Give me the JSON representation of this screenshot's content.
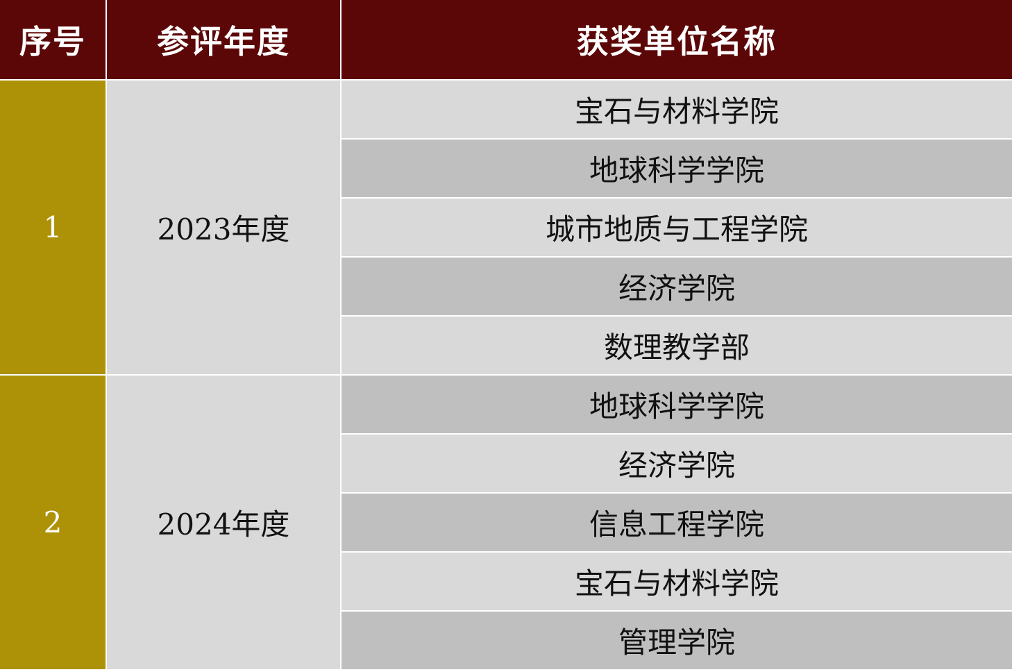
{
  "header": {
    "index": "序号",
    "year": "参评年度",
    "unit": "获奖单位名称"
  },
  "colors": {
    "header_bg": "#5C0707",
    "index_bg": "#AD9107",
    "light_row": "#D9D9D9",
    "dark_row": "#BFBFBF"
  },
  "groups": [
    {
      "index": "1",
      "year": "2023年度",
      "units": [
        "宝石与材料学院",
        "地球科学学院",
        "城市地质与工程学院",
        "经济学院",
        "数理教学部"
      ]
    },
    {
      "index": "2",
      "year": "2024年度",
      "units": [
        "地球科学学院",
        "经济学院",
        "信息工程学院",
        "宝石与材料学院",
        "管理学院"
      ]
    }
  ]
}
